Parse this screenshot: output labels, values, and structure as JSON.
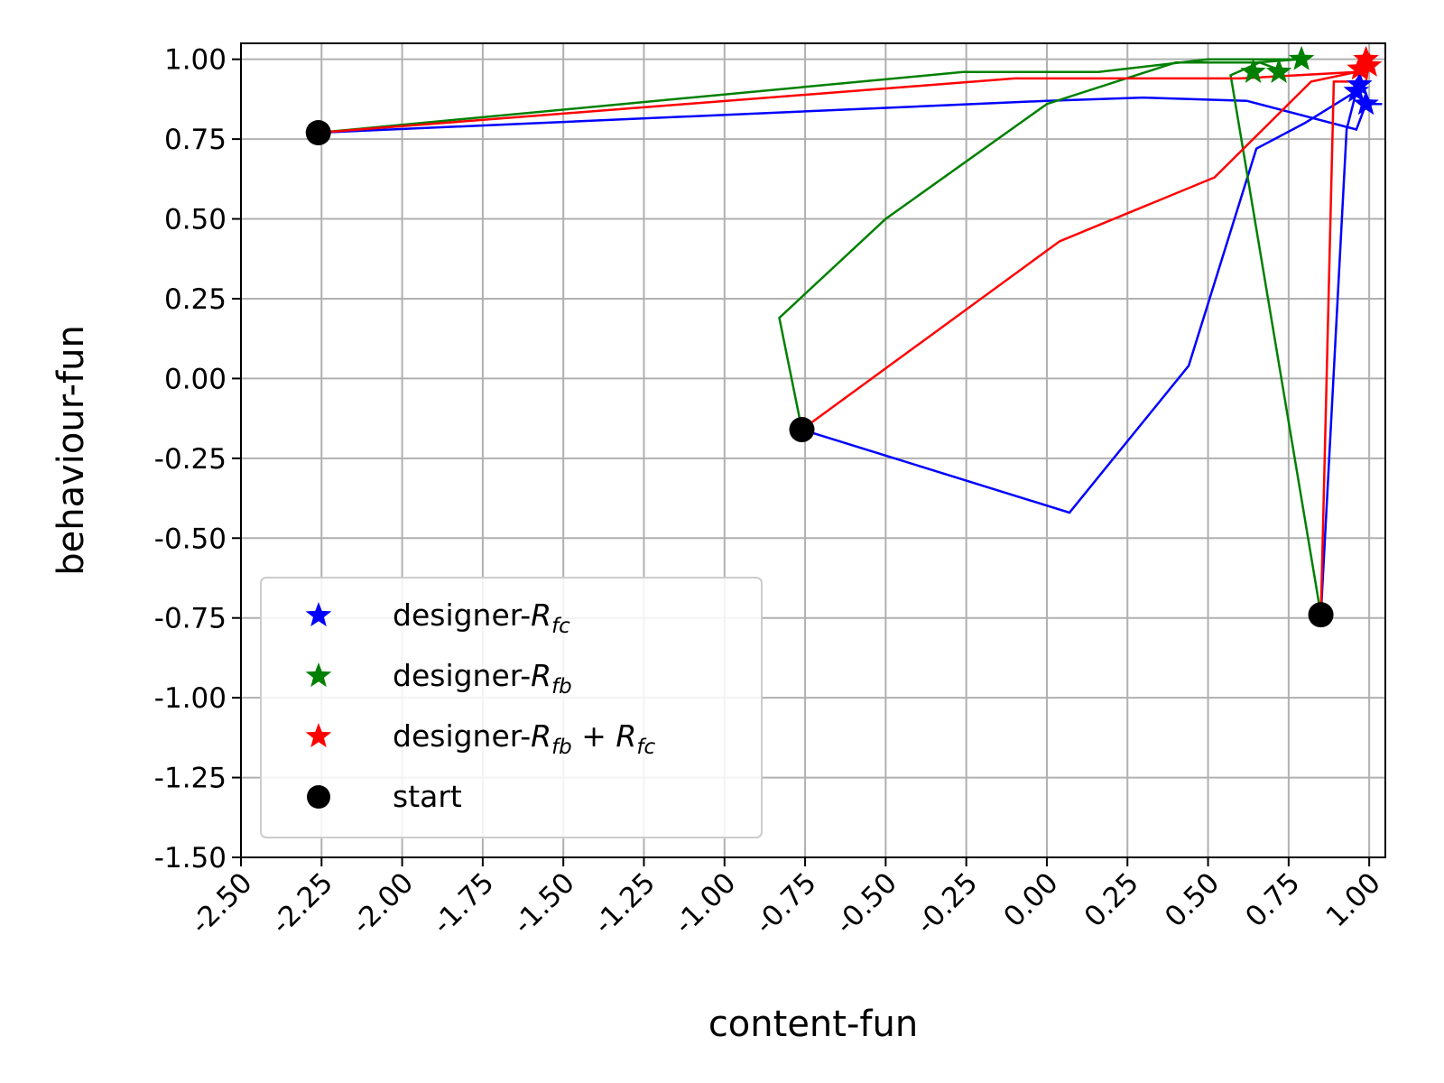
{
  "chart_data": {
    "type": "line",
    "xlabel": "content-fun",
    "ylabel": "behaviour-fun",
    "xlim": [
      -2.5,
      1.05
    ],
    "ylim": [
      -1.5,
      1.05
    ],
    "grid": true,
    "legend_position": "lower-left",
    "x_ticks": [
      "-2.50",
      "-2.25",
      "-2.00",
      "-1.75",
      "-1.50",
      "-1.25",
      "-1.00",
      "-0.75",
      "-0.50",
      "-0.25",
      "0.00",
      "0.25",
      "0.50",
      "0.75",
      "1.00"
    ],
    "x_tick_values": [
      -2.5,
      -2.25,
      -2.0,
      -1.75,
      -1.5,
      -1.25,
      -1.0,
      -0.75,
      -0.5,
      -0.25,
      0.0,
      0.25,
      0.5,
      0.75,
      1.0
    ],
    "y_ticks": [
      "1.00",
      "0.75",
      "0.50",
      "0.25",
      "0.00",
      "-0.25",
      "-0.50",
      "-0.75",
      "-1.00",
      "-1.25",
      "-1.50"
    ],
    "y_tick_values": [
      1.0,
      0.75,
      0.5,
      0.25,
      0.0,
      -0.25,
      -0.5,
      -0.75,
      -1.0,
      -1.25,
      -1.5
    ],
    "series": [
      {
        "name": "designer-Rfc",
        "legend_prefix": "designer-",
        "legend_main": "R",
        "legend_sub": "fc",
        "color": "#0000ff",
        "lines": [
          [
            [
              -2.26,
              0.77
            ],
            [
              0.0,
              0.87
            ],
            [
              0.3,
              0.88
            ],
            [
              0.62,
              0.87
            ],
            [
              0.96,
              0.78
            ],
            [
              0.99,
              0.86
            ],
            [
              1.04,
              0.86
            ]
          ],
          [
            [
              -0.76,
              -0.16
            ],
            [
              0.07,
              -0.42
            ],
            [
              0.44,
              0.04
            ],
            [
              0.65,
              0.72
            ],
            [
              0.8,
              0.8
            ],
            [
              0.96,
              0.9
            ]
          ],
          [
            [
              0.85,
              -0.74
            ],
            [
              0.93,
              0.78
            ],
            [
              0.96,
              0.9
            ]
          ]
        ],
        "stars": [
          [
            0.96,
            0.9
          ],
          [
            0.97,
            0.92
          ],
          [
            0.99,
            0.86
          ]
        ]
      },
      {
        "name": "designer-Rfb",
        "legend_prefix": "designer-",
        "legend_main": "R",
        "legend_sub": "fb",
        "color": "#008000",
        "lines": [
          [
            [
              -2.26,
              0.77
            ],
            [
              -0.26,
              0.96
            ],
            [
              0.16,
              0.96
            ],
            [
              0.5,
              1.0
            ],
            [
              0.8,
              1.0
            ]
          ],
          [
            [
              -0.76,
              -0.16
            ],
            [
              -0.83,
              0.19
            ],
            [
              -0.5,
              0.5
            ],
            [
              0.0,
              0.86
            ],
            [
              0.4,
              0.99
            ],
            [
              0.65,
              0.99
            ],
            [
              0.78,
              1.0
            ]
          ],
          [
            [
              0.85,
              -0.74
            ],
            [
              0.57,
              0.95
            ],
            [
              0.66,
              0.99
            ],
            [
              0.74,
              0.96
            ]
          ]
        ],
        "stars": [
          [
            0.64,
            0.96
          ],
          [
            0.72,
            0.96
          ],
          [
            0.79,
            1.0
          ]
        ]
      },
      {
        "name": "designer-Rfb+Rfc",
        "legend_prefix": "designer-",
        "legend_main": "R",
        "legend_sub": "fb",
        "legend_plus": " + ",
        "legend_main2": "R",
        "legend_sub2": "fc",
        "color": "#ff0000",
        "lines": [
          [
            [
              -2.26,
              0.77
            ],
            [
              -0.1,
              0.94
            ],
            [
              0.6,
              0.94
            ],
            [
              0.96,
              0.96
            ],
            [
              1.0,
              0.99
            ]
          ],
          [
            [
              -0.76,
              -0.16
            ],
            [
              0.04,
              0.43
            ],
            [
              0.52,
              0.63
            ],
            [
              0.82,
              0.93
            ],
            [
              0.96,
              0.96
            ]
          ],
          [
            [
              0.85,
              -0.74
            ],
            [
              0.89,
              0.93
            ],
            [
              0.99,
              0.93
            ],
            [
              1.0,
              0.99
            ]
          ]
        ],
        "stars": [
          [
            0.97,
            0.97
          ],
          [
            0.99,
            1.0
          ],
          [
            1.0,
            0.98
          ]
        ]
      }
    ],
    "start": {
      "name": "start",
      "color": "#000000",
      "points": [
        [
          -2.26,
          0.77
        ],
        [
          -0.76,
          -0.16
        ],
        [
          0.85,
          -0.74
        ]
      ]
    }
  }
}
